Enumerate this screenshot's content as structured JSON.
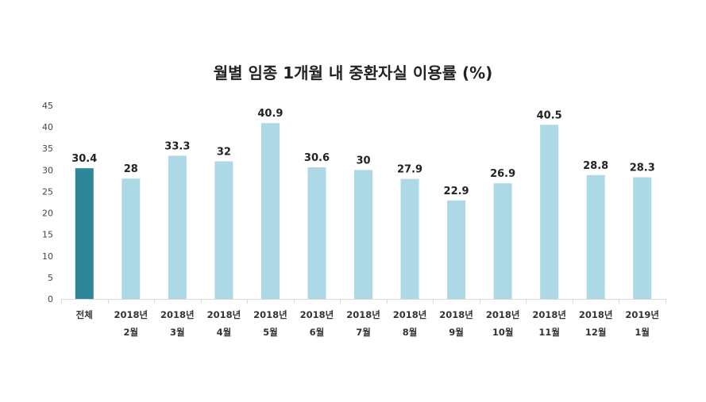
{
  "chart_data": {
    "type": "bar",
    "title": "월별 임종 1개월 내 중환자실 이용률 (%)",
    "xlabel": "",
    "ylabel": "",
    "ylim": [
      0,
      45
    ],
    "yticks": [
      0,
      5,
      10,
      15,
      20,
      25,
      30,
      35,
      40,
      45
    ],
    "categories": [
      [
        "전체"
      ],
      [
        "2018년",
        "2월"
      ],
      [
        "2018년",
        "3월"
      ],
      [
        "2018년",
        "4월"
      ],
      [
        "2018년",
        "5월"
      ],
      [
        "2018년",
        "6월"
      ],
      [
        "2018년",
        "7월"
      ],
      [
        "2018년",
        "8월"
      ],
      [
        "2018년",
        "9월"
      ],
      [
        "2018년",
        "10월"
      ],
      [
        "2018년",
        "11월"
      ],
      [
        "2018년",
        "12월"
      ],
      [
        "2019년",
        "1월"
      ]
    ],
    "values": [
      30.4,
      28,
      33.3,
      32,
      40.9,
      30.6,
      30,
      27.9,
      22.9,
      26.9,
      40.5,
      28.8,
      28.3
    ],
    "data_labels": [
      "30.4",
      "28",
      "33.3",
      "32",
      "40.9",
      "30.6",
      "30",
      "27.9",
      "22.9",
      "26.9",
      "40.5",
      "28.8",
      "28.3"
    ],
    "colors": {
      "highlight": "#2e8699",
      "bar": "#add8e6",
      "axis": "#d9d9d9"
    },
    "highlight_index": 0,
    "grid": false,
    "legend": "none"
  }
}
